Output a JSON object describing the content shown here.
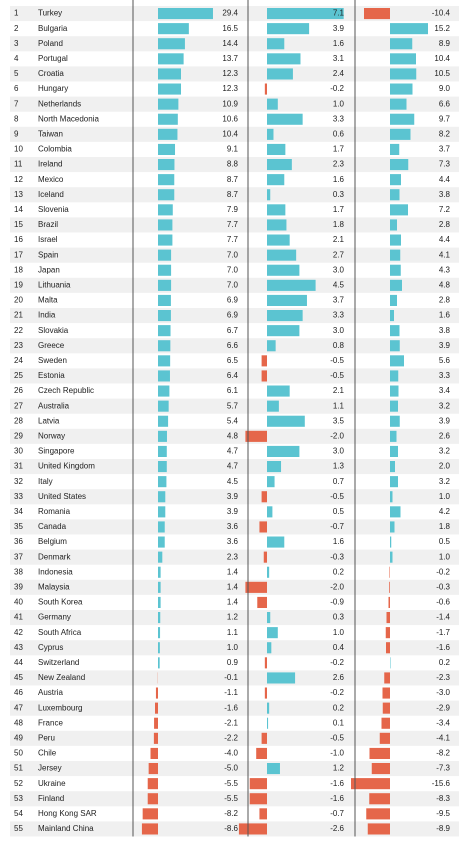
{
  "table": {
    "rows": [
      {
        "rank": 1,
        "name": "Turkey",
        "values": [
          29.4,
          7.1,
          -10.4
        ],
        "value_labels": [
          "29.4",
          "7.1",
          "-10.4"
        ]
      },
      {
        "rank": 2,
        "name": "Bulgaria",
        "values": [
          16.5,
          3.9,
          15.2
        ],
        "value_labels": [
          "16.5",
          "3.9",
          "15.2"
        ]
      },
      {
        "rank": 3,
        "name": "Poland",
        "values": [
          14.4,
          1.6,
          8.9
        ],
        "value_labels": [
          "14.4",
          "1.6",
          "8.9"
        ]
      },
      {
        "rank": 4,
        "name": "Portugal",
        "values": [
          13.7,
          3.1,
          10.4
        ],
        "value_labels": [
          "13.7",
          "3.1",
          "10.4"
        ]
      },
      {
        "rank": 5,
        "name": "Croatia",
        "values": [
          12.3,
          2.4,
          10.5
        ],
        "value_labels": [
          "12.3",
          "2.4",
          "10.5"
        ]
      },
      {
        "rank": 6,
        "name": "Hungary",
        "values": [
          12.3,
          -0.2,
          9.0
        ],
        "value_labels": [
          "12.3",
          "-0.2",
          "9.0"
        ]
      },
      {
        "rank": 7,
        "name": "Netherlands",
        "values": [
          10.9,
          1.0,
          6.6
        ],
        "value_labels": [
          "10.9",
          "1.0",
          "6.6"
        ]
      },
      {
        "rank": 8,
        "name": "North Macedonia",
        "values": [
          10.6,
          3.3,
          9.7
        ],
        "value_labels": [
          "10.6",
          "3.3",
          "9.7"
        ]
      },
      {
        "rank": 9,
        "name": "Taiwan",
        "values": [
          10.4,
          0.6,
          8.2
        ],
        "value_labels": [
          "10.4",
          "0.6",
          "8.2"
        ]
      },
      {
        "rank": 10,
        "name": "Colombia",
        "values": [
          9.1,
          1.7,
          3.7
        ],
        "value_labels": [
          "9.1",
          "1.7",
          "3.7"
        ]
      },
      {
        "rank": 11,
        "name": "Ireland",
        "values": [
          8.8,
          2.3,
          7.3
        ],
        "value_labels": [
          "8.8",
          "2.3",
          "7.3"
        ]
      },
      {
        "rank": 12,
        "name": "Mexico",
        "values": [
          8.7,
          1.6,
          4.4
        ],
        "value_labels": [
          "8.7",
          "1.6",
          "4.4"
        ]
      },
      {
        "rank": 13,
        "name": "Iceland",
        "values": [
          8.7,
          0.3,
          3.8
        ],
        "value_labels": [
          "8.7",
          "0.3",
          "3.8"
        ]
      },
      {
        "rank": 14,
        "name": "Slovenia",
        "values": [
          7.9,
          1.7,
          7.2
        ],
        "value_labels": [
          "7.9",
          "1.7",
          "7.2"
        ]
      },
      {
        "rank": 15,
        "name": "Brazil",
        "values": [
          7.7,
          1.8,
          2.8
        ],
        "value_labels": [
          "7.7",
          "1.8",
          "2.8"
        ]
      },
      {
        "rank": 16,
        "name": "Israel",
        "values": [
          7.7,
          2.1,
          4.4
        ],
        "value_labels": [
          "7.7",
          "2.1",
          "4.4"
        ]
      },
      {
        "rank": 17,
        "name": "Spain",
        "values": [
          7.0,
          2.7,
          4.1
        ],
        "value_labels": [
          "7.0",
          "2.7",
          "4.1"
        ]
      },
      {
        "rank": 18,
        "name": "Japan",
        "values": [
          7.0,
          3.0,
          4.3
        ],
        "value_labels": [
          "7.0",
          "3.0",
          "4.3"
        ]
      },
      {
        "rank": 19,
        "name": "Lithuania",
        "values": [
          7.0,
          4.5,
          4.8
        ],
        "value_labels": [
          "7.0",
          "4.5",
          "4.8"
        ]
      },
      {
        "rank": 20,
        "name": "Malta",
        "values": [
          6.9,
          3.7,
          2.8
        ],
        "value_labels": [
          "6.9",
          "3.7",
          "2.8"
        ]
      },
      {
        "rank": 21,
        "name": "India",
        "values": [
          6.9,
          3.3,
          1.6
        ],
        "value_labels": [
          "6.9",
          "3.3",
          "1.6"
        ]
      },
      {
        "rank": 22,
        "name": "Slovakia",
        "values": [
          6.7,
          3.0,
          3.8
        ],
        "value_labels": [
          "6.7",
          "3.0",
          "3.8"
        ]
      },
      {
        "rank": 23,
        "name": "Greece",
        "values": [
          6.6,
          0.8,
          3.9
        ],
        "value_labels": [
          "6.6",
          "0.8",
          "3.9"
        ]
      },
      {
        "rank": 24,
        "name": "Sweden",
        "values": [
          6.5,
          -0.5,
          5.6
        ],
        "value_labels": [
          "6.5",
          "-0.5",
          "5.6"
        ]
      },
      {
        "rank": 25,
        "name": "Estonia",
        "values": [
          6.4,
          -0.5,
          3.3
        ],
        "value_labels": [
          "6.4",
          "-0.5",
          "3.3"
        ]
      },
      {
        "rank": 26,
        "name": "Czech Republic",
        "values": [
          6.1,
          2.1,
          3.4
        ],
        "value_labels": [
          "6.1",
          "2.1",
          "3.4"
        ]
      },
      {
        "rank": 27,
        "name": "Australia",
        "values": [
          5.7,
          1.1,
          3.2
        ],
        "value_labels": [
          "5.7",
          "1.1",
          "3.2"
        ]
      },
      {
        "rank": 28,
        "name": "Latvia",
        "values": [
          5.4,
          3.5,
          3.9
        ],
        "value_labels": [
          "5.4",
          "3.5",
          "3.9"
        ]
      },
      {
        "rank": 29,
        "name": "Norway",
        "values": [
          4.8,
          -2.0,
          2.6
        ],
        "value_labels": [
          "4.8",
          "-2.0",
          "2.6"
        ]
      },
      {
        "rank": 30,
        "name": "Singapore",
        "values": [
          4.7,
          3.0,
          3.2
        ],
        "value_labels": [
          "4.7",
          "3.0",
          "3.2"
        ]
      },
      {
        "rank": 31,
        "name": "United Kingdom",
        "values": [
          4.7,
          1.3,
          2.0
        ],
        "value_labels": [
          "4.7",
          "1.3",
          "2.0"
        ]
      },
      {
        "rank": 32,
        "name": "Italy",
        "values": [
          4.5,
          0.7,
          3.2
        ],
        "value_labels": [
          "4.5",
          "0.7",
          "3.2"
        ]
      },
      {
        "rank": 33,
        "name": "United States",
        "values": [
          3.9,
          -0.5,
          1.0
        ],
        "value_labels": [
          "3.9",
          "-0.5",
          "1.0"
        ]
      },
      {
        "rank": 34,
        "name": "Romania",
        "values": [
          3.9,
          0.5,
          4.2
        ],
        "value_labels": [
          "3.9",
          "0.5",
          "4.2"
        ]
      },
      {
        "rank": 35,
        "name": "Canada",
        "values": [
          3.6,
          -0.7,
          1.8
        ],
        "value_labels": [
          "3.6",
          "-0.7",
          "1.8"
        ]
      },
      {
        "rank": 36,
        "name": "Belgium",
        "values": [
          3.6,
          1.6,
          0.5
        ],
        "value_labels": [
          "3.6",
          "1.6",
          "0.5"
        ]
      },
      {
        "rank": 37,
        "name": "Denmark",
        "values": [
          2.3,
          -0.3,
          1.0
        ],
        "value_labels": [
          "2.3",
          "-0.3",
          "1.0"
        ]
      },
      {
        "rank": 38,
        "name": "Indonesia",
        "values": [
          1.4,
          0.2,
          -0.2
        ],
        "value_labels": [
          "1.4",
          "0.2",
          "-0.2"
        ]
      },
      {
        "rank": 39,
        "name": "Malaysia",
        "values": [
          1.4,
          -2.0,
          -0.3
        ],
        "value_labels": [
          "1.4",
          "-2.0",
          "-0.3"
        ]
      },
      {
        "rank": 40,
        "name": "South Korea",
        "values": [
          1.4,
          -0.9,
          -0.6
        ],
        "value_labels": [
          "1.4",
          "-0.9",
          "-0.6"
        ]
      },
      {
        "rank": 41,
        "name": "Germany",
        "values": [
          1.2,
          0.3,
          -1.4
        ],
        "value_labels": [
          "1.2",
          "0.3",
          "-1.4"
        ]
      },
      {
        "rank": 42,
        "name": "South Africa",
        "values": [
          1.1,
          1.0,
          -1.7
        ],
        "value_labels": [
          "1.1",
          "1.0",
          "-1.7"
        ]
      },
      {
        "rank": 43,
        "name": "Cyprus",
        "values": [
          1.0,
          0.4,
          -1.6
        ],
        "value_labels": [
          "1.0",
          "0.4",
          "-1.6"
        ]
      },
      {
        "rank": 44,
        "name": "Switzerland",
        "values": [
          0.9,
          -0.2,
          0.2
        ],
        "value_labels": [
          "0.9",
          "-0.2",
          "0.2"
        ]
      },
      {
        "rank": 45,
        "name": "New Zealand",
        "values": [
          -0.1,
          2.6,
          -2.3
        ],
        "value_labels": [
          "-0.1",
          "2.6",
          "-2.3"
        ]
      },
      {
        "rank": 46,
        "name": "Austria",
        "values": [
          -1.1,
          -0.2,
          -3.0
        ],
        "value_labels": [
          "-1.1",
          "-0.2",
          "-3.0"
        ]
      },
      {
        "rank": 47,
        "name": "Luxembourg",
        "values": [
          -1.6,
          0.2,
          -2.9
        ],
        "value_labels": [
          "-1.6",
          "0.2",
          "-2.9"
        ]
      },
      {
        "rank": 48,
        "name": "France",
        "values": [
          -2.1,
          0.1,
          -3.4
        ],
        "value_labels": [
          "-2.1",
          "0.1",
          "-3.4"
        ]
      },
      {
        "rank": 49,
        "name": "Peru",
        "values": [
          -2.2,
          -0.5,
          -4.1
        ],
        "value_labels": [
          "-2.2",
          "-0.5",
          "-4.1"
        ]
      },
      {
        "rank": 50,
        "name": "Chile",
        "values": [
          -4.0,
          -1.0,
          -8.2
        ],
        "value_labels": [
          "-4.0",
          "-1.0",
          "-8.2"
        ]
      },
      {
        "rank": 51,
        "name": "Jersey",
        "values": [
          -5.0,
          1.2,
          -7.3
        ],
        "value_labels": [
          "-5.0",
          "1.2",
          "-7.3"
        ]
      },
      {
        "rank": 52,
        "name": "Ukraine",
        "values": [
          -5.5,
          -1.6,
          -15.6
        ],
        "value_labels": [
          "-5.5",
          "-1.6",
          "-15.6"
        ]
      },
      {
        "rank": 53,
        "name": "Finland",
        "values": [
          -5.5,
          -1.6,
          -8.3
        ],
        "value_labels": [
          "-5.5",
          "-1.6",
          "-8.3"
        ]
      },
      {
        "rank": 54,
        "name": "Hong Kong SAR",
        "values": [
          -8.2,
          -0.7,
          -9.5
        ],
        "value_labels": [
          "-8.2",
          "-0.7",
          "-9.5"
        ]
      },
      {
        "rank": 55,
        "name": "Mainland China",
        "values": [
          -8.6,
          -2.6,
          -8.9
        ],
        "value_labels": [
          "-8.6",
          "-2.6",
          "-8.9"
        ]
      }
    ],
    "positive_color": "#5bc4d1",
    "negative_color": "#e5664a"
  }
}
